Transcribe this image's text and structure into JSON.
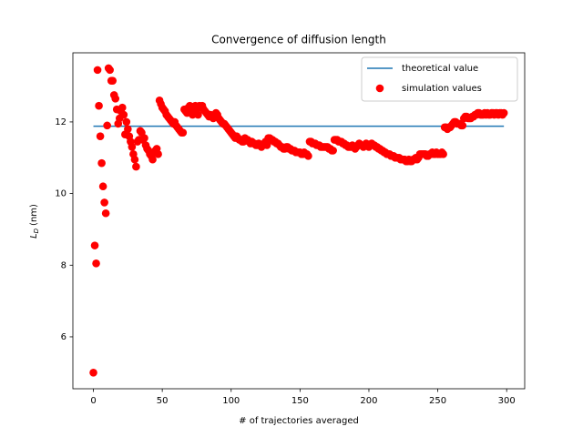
{
  "chart_data": {
    "type": "line",
    "title": "Convergence of diffusion length",
    "xlabel": "# of trajectories averaged",
    "ylabel": {
      "symbol": "L",
      "subscript": "D",
      "unit": "(nm)"
    },
    "xlim": [
      -14.9,
      313.1
    ],
    "ylim": [
      4.55,
      13.93
    ],
    "xticks": [
      0,
      50,
      100,
      150,
      200,
      250,
      300
    ],
    "yticks": [
      6,
      8,
      10,
      12
    ],
    "legend": "upper right",
    "series": [
      {
        "name": "theoretical value",
        "color": "#1f77b4",
        "mode": "line",
        "x": [
          0,
          298
        ],
        "values": [
          11.88,
          11.88
        ]
      },
      {
        "name": "simulation values",
        "color": "#ff0000",
        "mode": "markers",
        "x": [
          0,
          1,
          2,
          3,
          4,
          5,
          6,
          7,
          8,
          9,
          10,
          11,
          12,
          13,
          14,
          15,
          16,
          17,
          18,
          19,
          20,
          21,
          22,
          23,
          24,
          25,
          26,
          27,
          28,
          29,
          30,
          31,
          32,
          33,
          34,
          35,
          36,
          37,
          38,
          39,
          40,
          41,
          42,
          43,
          44,
          45,
          46,
          47,
          48,
          49,
          50,
          51,
          52,
          53,
          54,
          55,
          56,
          57,
          58,
          59,
          60,
          61,
          62,
          63,
          64,
          65,
          66,
          67,
          68,
          69,
          70,
          71,
          72,
          73,
          74,
          75,
          76,
          77,
          78,
          79,
          80,
          81,
          82,
          83,
          84,
          85,
          86,
          87,
          88,
          89,
          90,
          91,
          92,
          93,
          94,
          95,
          96,
          97,
          98,
          99,
          100,
          101,
          102,
          103,
          104,
          105,
          106,
          107,
          108,
          109,
          110,
          111,
          112,
          113,
          114,
          115,
          116,
          117,
          118,
          119,
          120,
          121,
          122,
          123,
          124,
          125,
          126,
          127,
          128,
          129,
          130,
          131,
          132,
          133,
          134,
          135,
          136,
          137,
          138,
          139,
          140,
          141,
          142,
          143,
          144,
          145,
          146,
          147,
          148,
          149,
          150,
          151,
          152,
          153,
          154,
          155,
          156,
          157,
          158,
          159,
          160,
          161,
          162,
          163,
          164,
          165,
          166,
          167,
          168,
          169,
          170,
          171,
          172,
          173,
          174,
          175,
          176,
          177,
          178,
          179,
          180,
          181,
          182,
          183,
          184,
          185,
          186,
          187,
          188,
          189,
          190,
          191,
          192,
          193,
          194,
          195,
          196,
          197,
          198,
          199,
          200,
          201,
          202,
          203,
          204,
          205,
          206,
          207,
          208,
          209,
          210,
          211,
          212,
          213,
          214,
          215,
          216,
          217,
          218,
          219,
          220,
          221,
          222,
          223,
          224,
          225,
          226,
          227,
          228,
          229,
          230,
          231,
          232,
          233,
          234,
          235,
          236,
          237,
          238,
          239,
          240,
          241,
          242,
          243,
          244,
          245,
          246,
          247,
          248,
          249,
          250,
          251,
          252,
          253,
          254,
          255,
          256,
          257,
          258,
          259,
          260,
          261,
          262,
          263,
          264,
          265,
          266,
          267,
          268,
          269,
          270,
          271,
          272,
          273,
          274,
          275,
          276,
          277,
          278,
          279,
          280,
          281,
          282,
          283,
          284,
          285,
          286,
          287,
          288,
          289,
          290,
          291,
          292,
          293,
          294,
          295,
          296,
          297,
          298
        ],
        "values": [
          5.0,
          8.55,
          8.05,
          13.45,
          12.45,
          11.6,
          10.85,
          10.2,
          9.75,
          9.45,
          11.9,
          13.5,
          13.45,
          13.15,
          13.15,
          12.75,
          12.65,
          12.35,
          11.95,
          12.1,
          12.3,
          12.4,
          12.2,
          11.65,
          12.0,
          11.8,
          11.6,
          11.45,
          11.3,
          11.1,
          10.95,
          10.75,
          11.45,
          11.5,
          11.75,
          11.7,
          11.5,
          11.55,
          11.35,
          11.25,
          11.2,
          11.1,
          11.05,
          10.95,
          11.15,
          11.2,
          11.25,
          11.1,
          12.6,
          12.5,
          12.4,
          12.35,
          12.3,
          12.2,
          12.15,
          12.1,
          12.05,
          12.0,
          11.95,
          12.0,
          11.9,
          11.85,
          11.8,
          11.75,
          11.7,
          11.7,
          12.35,
          12.3,
          12.25,
          12.4,
          12.45,
          12.3,
          12.2,
          12.4,
          12.45,
          12.35,
          12.2,
          12.45,
          12.4,
          12.45,
          12.35,
          12.3,
          12.25,
          12.2,
          12.15,
          12.2,
          12.15,
          12.1,
          12.2,
          12.25,
          12.2,
          12.1,
          12.05,
          12.0,
          11.95,
          11.95,
          11.9,
          11.85,
          11.8,
          11.75,
          11.7,
          11.65,
          11.6,
          11.55,
          11.6,
          11.55,
          11.5,
          11.5,
          11.45,
          11.45,
          11.55,
          11.5,
          11.5,
          11.45,
          11.4,
          11.45,
          11.4,
          11.4,
          11.35,
          11.35,
          11.4,
          11.35,
          11.3,
          11.35,
          11.4,
          11.45,
          11.35,
          11.55,
          11.55,
          11.5,
          11.5,
          11.45,
          11.45,
          11.4,
          11.4,
          11.35,
          11.3,
          11.3,
          11.25,
          11.25,
          11.3,
          11.3,
          11.25,
          11.25,
          11.2,
          11.2,
          11.2,
          11.15,
          11.15,
          11.15,
          11.15,
          11.1,
          11.1,
          11.15,
          11.1,
          11.1,
          11.05,
          11.45,
          11.45,
          11.4,
          11.4,
          11.4,
          11.35,
          11.35,
          11.35,
          11.3,
          11.3,
          11.3,
          11.3,
          11.3,
          11.3,
          11.25,
          11.25,
          11.2,
          11.2,
          11.5,
          11.5,
          11.5,
          11.45,
          11.45,
          11.45,
          11.4,
          11.4,
          11.35,
          11.35,
          11.3,
          11.3,
          11.3,
          11.35,
          11.3,
          11.25,
          11.3,
          11.35,
          11.4,
          11.35,
          11.35,
          11.3,
          11.35,
          11.4,
          11.35,
          11.3,
          11.35,
          11.4,
          11.35,
          11.35,
          11.3,
          11.3,
          11.25,
          11.25,
          11.2,
          11.2,
          11.15,
          11.15,
          11.1,
          11.1,
          11.1,
          11.05,
          11.05,
          11.05,
          11.0,
          11.0,
          11.0,
          11.0,
          10.95,
          10.95,
          10.95,
          10.95,
          10.9,
          10.9,
          10.95,
          10.9,
          10.9,
          10.95,
          10.95,
          11.0,
          10.95,
          11.0,
          11.1,
          11.1,
          11.1,
          11.1,
          11.1,
          11.05,
          11.05,
          11.1,
          11.1,
          11.15,
          11.1,
          11.1,
          11.15,
          11.1,
          11.1,
          11.1,
          11.15,
          11.1,
          11.85,
          11.85,
          11.8,
          11.85,
          11.85,
          11.9,
          11.95,
          12.0,
          12.0,
          11.95,
          11.95,
          11.95,
          11.9,
          11.9,
          12.1,
          12.15,
          12.15,
          12.1,
          12.1,
          12.1,
          12.15,
          12.15,
          12.2,
          12.2,
          12.25,
          12.25,
          12.2,
          12.2,
          12.2,
          12.25,
          12.2,
          12.25,
          12.2,
          12.2,
          12.25,
          12.25,
          12.2,
          12.25,
          12.25,
          12.2,
          12.25,
          12.25,
          12.2,
          12.25
        ]
      }
    ]
  }
}
